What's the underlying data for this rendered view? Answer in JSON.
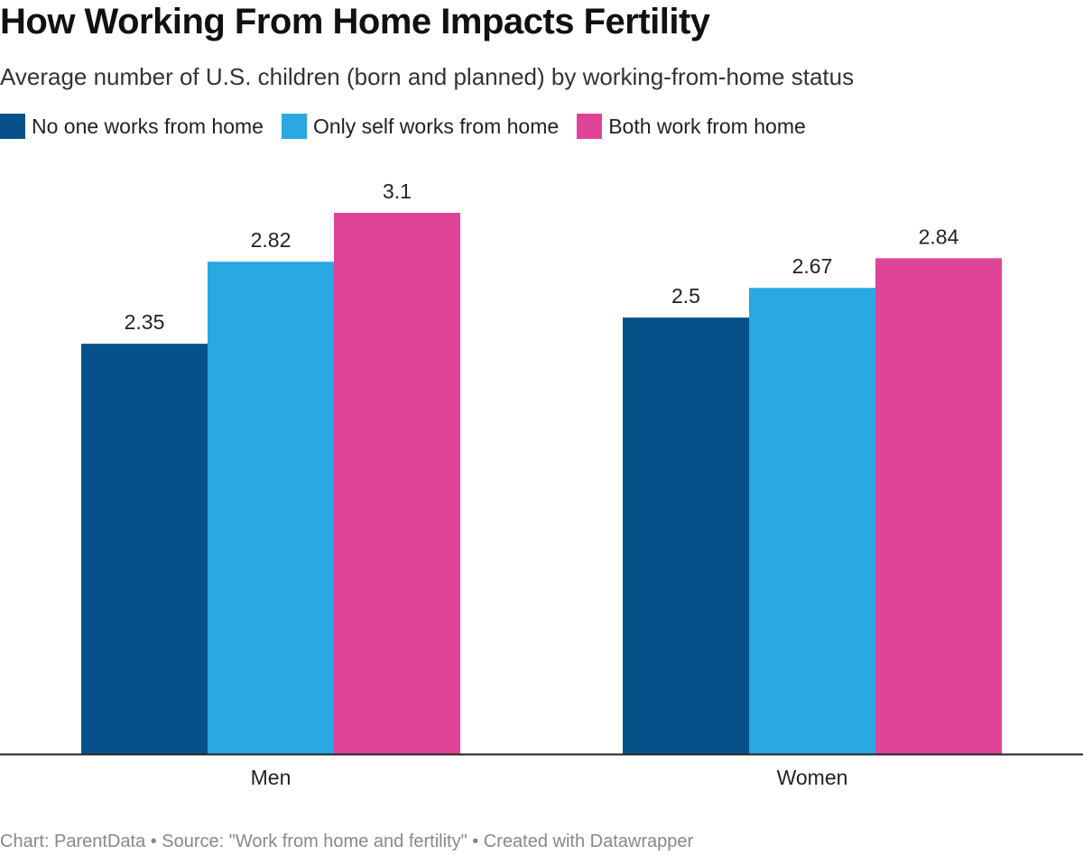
{
  "header": {
    "title": "How Working From Home Impacts Fertility",
    "subtitle": "Average number of U.S. children (born and planned) by working-from-home status"
  },
  "legend": [
    {
      "label": "No one works from home",
      "color": "#07518a"
    },
    {
      "label": "Only self works from home",
      "color": "#29a8e1"
    },
    {
      "label": "Both work from home",
      "color": "#e04497"
    }
  ],
  "chart_data": {
    "type": "bar",
    "title": "How Working From Home Impacts Fertility",
    "subtitle": "Average number of U.S. children (born and planned) by working-from-home status",
    "categories": [
      "Men",
      "Women"
    ],
    "series": [
      {
        "name": "No one works from home",
        "values": [
          2.35,
          2.5
        ],
        "labels": [
          "2.35",
          "2.5"
        ],
        "color": "#07518a"
      },
      {
        "name": "Only self works from home",
        "values": [
          2.82,
          2.67
        ],
        "labels": [
          "2.82",
          "2.67"
        ],
        "color": "#29a8e1"
      },
      {
        "name": "Both work from home",
        "values": [
          3.1,
          2.84
        ],
        "labels": [
          "3.1",
          "2.84"
        ],
        "color": "#e04497"
      }
    ],
    "xlabel": "",
    "ylabel": "",
    "ylim": [
      0,
      3.1
    ],
    "grid": false,
    "legend_position": "top-left"
  },
  "footer": {
    "text": "Chart: ParentData • Source: \"Work from home and fertility\" • Created with Datawrapper"
  }
}
